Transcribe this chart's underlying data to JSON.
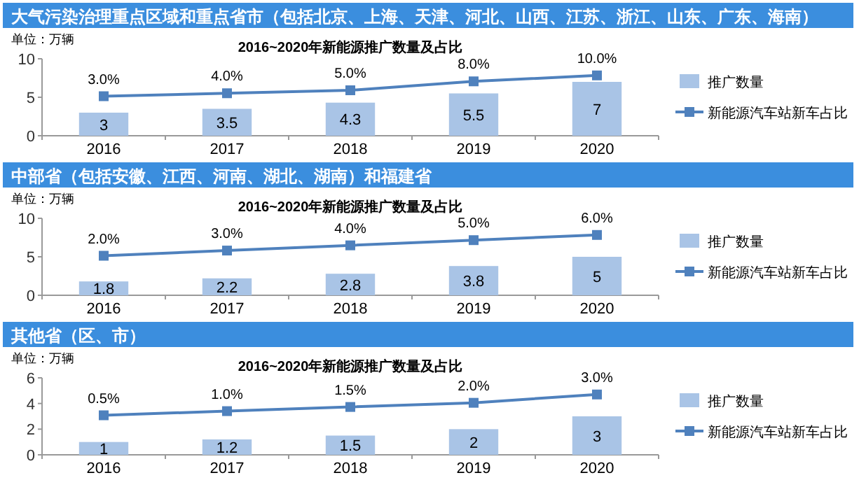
{
  "chart_data": [
    {
      "type": "bar",
      "title": "大气污染治理重点区域和重点省市（包括北京、上海、天津、河北、山西、江苏、浙江、山东、广东、海南）",
      "subtitle": "2016~2020年新能源推广数量及占比",
      "ylabel": "单位：万辆",
      "categories": [
        "2016",
        "2017",
        "2018",
        "2019",
        "2020"
      ],
      "ylim": [
        0,
        10
      ],
      "yticks": [
        0,
        5,
        10
      ],
      "data_labels": true,
      "legend": "right",
      "marker": "square",
      "line_style": "solid",
      "series": [
        {
          "name": "推广数量",
          "color": "#a9c4e6",
          "values": [
            3,
            3.5,
            4.3,
            5.5,
            7
          ]
        },
        {
          "name": "新能源汽车站新车占比",
          "type": "line",
          "axis": "y2",
          "color": "#4f81bd",
          "values": [
            3,
            4,
            5,
            8,
            10
          ],
          "value_labels": [
            "3.0%",
            "4.0%",
            "5.0%",
            "8.0%",
            "10.0%"
          ]
        }
      ]
    },
    {
      "type": "bar",
      "title": "中部省（包括安徽、江西、河南、湖北、湖南）和福建省",
      "subtitle": "2016~2020年新能源推广数量及占比",
      "ylabel": "单位：万辆",
      "categories": [
        "2016",
        "2017",
        "2018",
        "2019",
        "2020"
      ],
      "ylim": [
        0,
        10
      ],
      "yticks": [
        0,
        5,
        10
      ],
      "data_labels": true,
      "legend": "right",
      "marker": "square",
      "line_style": "solid",
      "series": [
        {
          "name": "推广数量",
          "color": "#a9c4e6",
          "values": [
            1.8,
            2.2,
            2.8,
            3.8,
            5
          ]
        },
        {
          "name": "新能源汽车站新车占比",
          "type": "line",
          "axis": "y2",
          "color": "#4f81bd",
          "values": [
            2,
            3,
            4,
            5,
            6
          ],
          "value_labels": [
            "2.0%",
            "3.0%",
            "4.0%",
            "5.0%",
            "6.0%"
          ]
        }
      ]
    },
    {
      "type": "bar",
      "title": "其他省（区、市）",
      "subtitle": "2016~2020年新能源推广数量及占比",
      "ylabel": "单位：万辆",
      "categories": [
        "2016",
        "2017",
        "2018",
        "2019",
        "2020"
      ],
      "ylim": [
        0,
        6
      ],
      "yticks": [
        0,
        2,
        4,
        6
      ],
      "data_labels": true,
      "legend": "right",
      "marker": "square",
      "line_style": "solid",
      "series": [
        {
          "name": "推广数量",
          "color": "#a9c4e6",
          "values": [
            1,
            1.2,
            1.5,
            2,
            3
          ]
        },
        {
          "name": "新能源汽车站新车占比",
          "type": "line",
          "axis": "y2",
          "color": "#4f81bd",
          "values": [
            0.5,
            1,
            1.5,
            2,
            3
          ],
          "value_labels": [
            "0.5%",
            "1.0%",
            "1.5%",
            "2.0%",
            "3.0%"
          ]
        }
      ]
    }
  ]
}
